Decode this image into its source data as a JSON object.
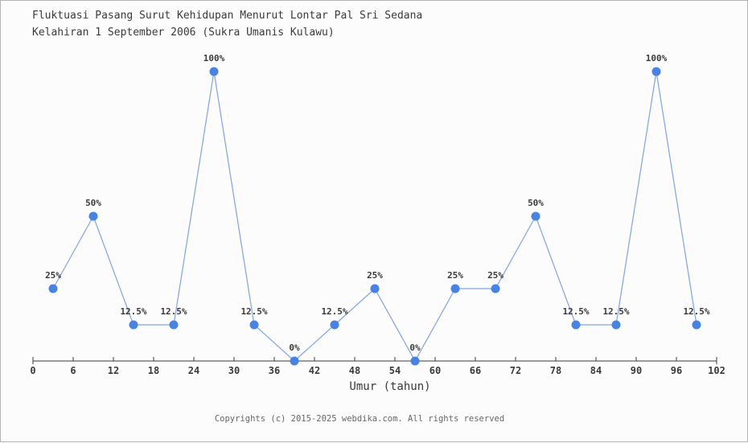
{
  "page": {
    "background": "#fcfcfc",
    "border_color": "#b3b3b3"
  },
  "title": {
    "line1": "Fluktuasi Pasang Surut Kehidupan Menurut Lontar Pal Sri Sedana",
    "line2": "Kelahiran 1 September 2006 (Sukra Umanis Kulawu)"
  },
  "footer": {
    "copyright": "Copyrights (c) 2015-2025 webdika.com. All rights reserved"
  },
  "chart_data": {
    "type": "line",
    "title": "Fluktuasi Pasang Surut Kehidupan Menurut Lontar Pal Sri Sedana Kelahiran 1 September 2006 (Sukra Umanis Kulawu)",
    "xlabel": "Umur (tahun)",
    "ylabel": "",
    "x": [
      3,
      9,
      15,
      21,
      27,
      33,
      39,
      45,
      51,
      57,
      63,
      69,
      75,
      81,
      87,
      93,
      99
    ],
    "values": [
      25,
      50,
      12.5,
      12.5,
      100,
      12.5,
      0,
      12.5,
      25,
      0,
      25,
      25,
      50,
      12.5,
      12.5,
      100,
      12.5
    ],
    "point_labels": [
      "25%",
      "50%",
      "12.5%",
      "12.5%",
      "100%",
      "12.5%",
      "0%",
      "12.5%",
      "25%",
      "0%",
      "25%",
      "25%",
      "50%",
      "12.5%",
      "12.5%",
      "100%",
      "12.5%"
    ],
    "x_ticks": [
      0,
      6,
      12,
      18,
      24,
      30,
      36,
      42,
      48,
      54,
      60,
      66,
      72,
      78,
      84,
      90,
      96,
      102
    ],
    "xlim": [
      0,
      102
    ],
    "ylim": [
      0,
      100
    ],
    "grid": false,
    "legend": "none",
    "y_axis_shown": false,
    "line_color": "#7ba3ee",
    "marker_color": "#4483ea",
    "axis_color": "#3a3a3a",
    "label_color": "#3a3a3a"
  }
}
